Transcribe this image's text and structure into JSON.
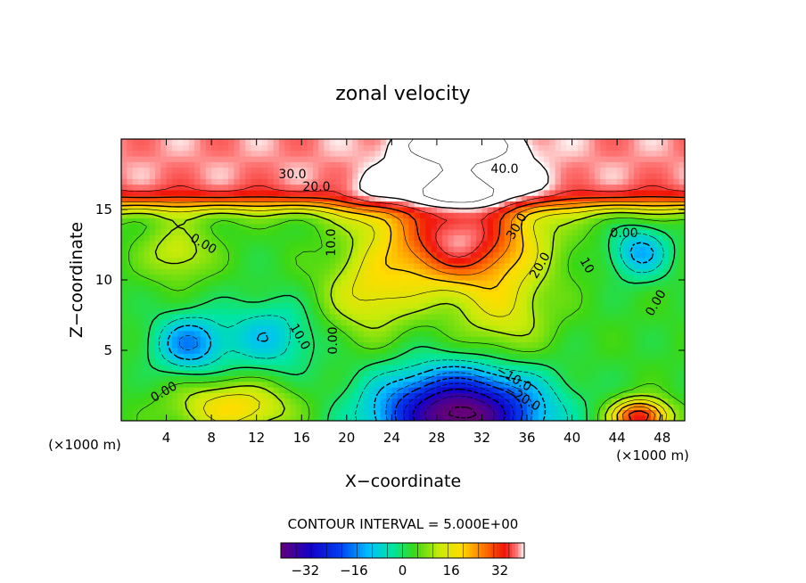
{
  "chart_data": {
    "type": "heatmap",
    "title": "zonal velocity",
    "xlabel": "X−coordinate",
    "ylabel": "Z−coordinate",
    "x_unit_note_left": "(×1000 m)",
    "x_unit_note_right": "(×1000 m)",
    "xlim": [
      0,
      50
    ],
    "ylim": [
      0,
      20
    ],
    "x_ticks": [
      "4",
      "8",
      "12",
      "16",
      "20",
      "24",
      "28",
      "32",
      "36",
      "40",
      "44",
      "48"
    ],
    "y_ticks": [
      "5",
      "10",
      "15"
    ],
    "contour_interval_text": "CONTOUR INTERVAL = 5.000E+00",
    "contour_labels": [
      "30.0",
      "20.0",
      "40.0",
      "0.00",
      "10.0",
      "30.0",
      "20.0",
      "0.00",
      "10",
      "0.00",
      "10.0",
      "0.00",
      "−10.0",
      "−20.0",
      "0.00"
    ],
    "colorbar": {
      "range": [
        -40,
        40
      ],
      "ticks": [
        "−32",
        "−16",
        "0",
        "16",
        "32"
      ]
    },
    "features": [
      {
        "kind": "jet_core",
        "x": 30,
        "z": 14.5,
        "value": 35
      },
      {
        "kind": "upper_layer",
        "z_min": 16,
        "value": 38
      },
      {
        "kind": "negative_cell",
        "x": 30,
        "z": 1.5,
        "value": -30
      },
      {
        "kind": "negative_cell",
        "x": 6,
        "z": 5.5,
        "value": -14
      },
      {
        "kind": "negative_cell",
        "x": 12,
        "z": 6,
        "value": -10
      },
      {
        "kind": "negative_cell",
        "x": 46,
        "z": 12,
        "value": -10
      },
      {
        "kind": "positive_cell",
        "x": 5,
        "z": 12,
        "value": 12
      },
      {
        "kind": "positive_cell",
        "x": 10,
        "z": 1,
        "value": 18
      },
      {
        "kind": "positive_cell",
        "x": 46,
        "z": 0.5,
        "value": 30
      }
    ]
  }
}
